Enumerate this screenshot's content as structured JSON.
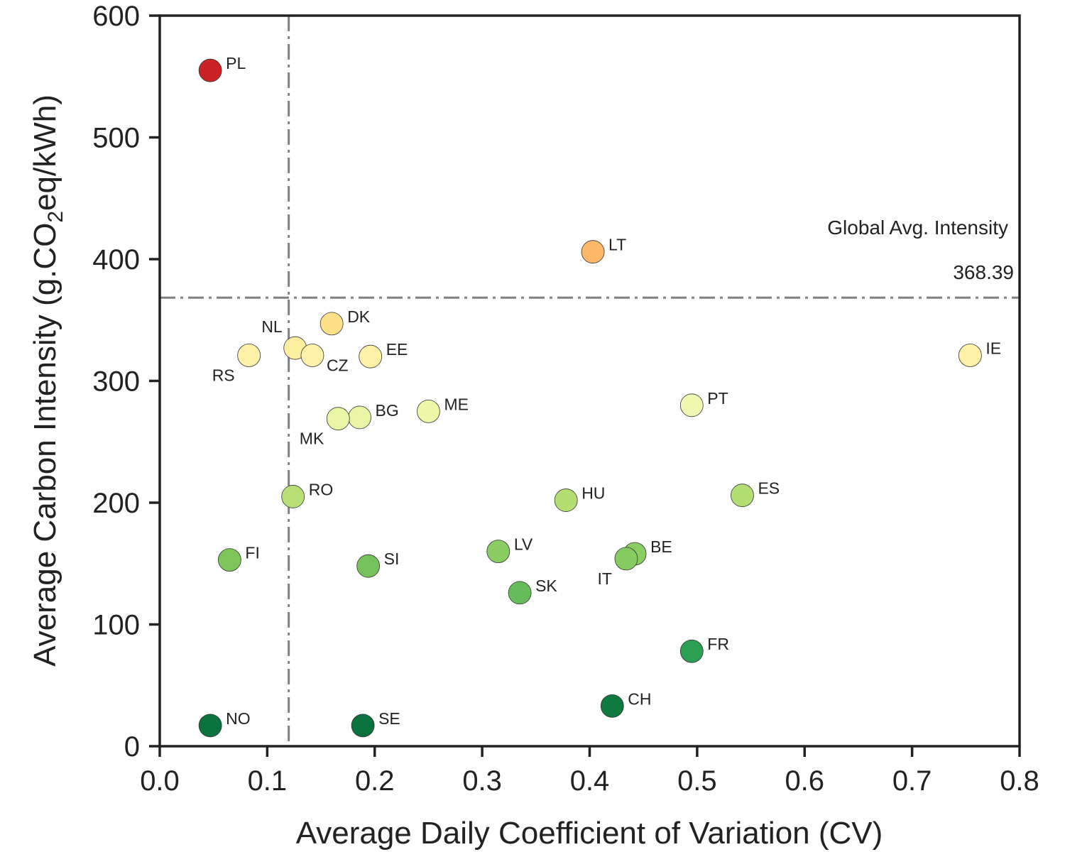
{
  "chart_data": {
    "type": "scatter",
    "title": "",
    "xlabel": "Average Daily Coefficient of Variation (CV)",
    "ylabel_parts": [
      "Average Carbon Intensity (g.CO",
      "2",
      "eq/kWh)"
    ],
    "xlim": [
      0.0,
      0.8
    ],
    "ylim": [
      0,
      600
    ],
    "xticks": [
      "0.0",
      "0.1",
      "0.2",
      "0.3",
      "0.4",
      "0.5",
      "0.6",
      "0.7",
      "0.8"
    ],
    "yticks": [
      "0",
      "100",
      "200",
      "300",
      "400",
      "500",
      "600"
    ],
    "grid": false,
    "reference_lines": {
      "horizontal": {
        "y": 368.39,
        "label": "Global Avg. Intensity",
        "value_label": "368.39",
        "color": "#808080",
        "style": "dash-dot"
      },
      "vertical": {
        "x": 0.12,
        "color": "#808080",
        "style": "dash-dot"
      }
    },
    "points": [
      {
        "label": "PL",
        "x": 0.047,
        "y": 555,
        "color": "#cc2226",
        "label_pos": "right"
      },
      {
        "label": "LT",
        "x": 0.403,
        "y": 406,
        "color": "#fdb768",
        "label_pos": "right"
      },
      {
        "label": "DK",
        "x": 0.16,
        "y": 347,
        "color": "#fee08b",
        "label_pos": "right"
      },
      {
        "label": "NL",
        "x": 0.126,
        "y": 327,
        "color": "#feeea0",
        "label_pos": "upper-left"
      },
      {
        "label": "CZ",
        "x": 0.142,
        "y": 321,
        "color": "#fff1a8",
        "label_pos": "lower-right"
      },
      {
        "label": "RS",
        "x": 0.083,
        "y": 321,
        "color": "#fff1a8",
        "label_pos": "lower-left"
      },
      {
        "label": "EE",
        "x": 0.196,
        "y": 320,
        "color": "#fff1a8",
        "label_pos": "right"
      },
      {
        "label": "IE",
        "x": 0.754,
        "y": 321,
        "color": "#fff1a8",
        "label_pos": "right"
      },
      {
        "label": "PT",
        "x": 0.495,
        "y": 280,
        "color": "#f0f7b0",
        "label_pos": "right"
      },
      {
        "label": "ME",
        "x": 0.25,
        "y": 275,
        "color": "#eef6a8",
        "label_pos": "right"
      },
      {
        "label": "BG",
        "x": 0.186,
        "y": 270,
        "color": "#e9f5a5",
        "label_pos": "right"
      },
      {
        "label": "MK",
        "x": 0.166,
        "y": 269,
        "color": "#e9f5a5",
        "label_pos": "lower-left"
      },
      {
        "label": "RO",
        "x": 0.124,
        "y": 205,
        "color": "#b6e076",
        "label_pos": "right"
      },
      {
        "label": "ES",
        "x": 0.542,
        "y": 206,
        "color": "#b3de73",
        "label_pos": "right"
      },
      {
        "label": "HU",
        "x": 0.378,
        "y": 202,
        "color": "#b3de73",
        "label_pos": "right"
      },
      {
        "label": "LV",
        "x": 0.315,
        "y": 160,
        "color": "#89cc62",
        "label_pos": "right"
      },
      {
        "label": "BE",
        "x": 0.442,
        "y": 158,
        "color": "#8acd63",
        "label_pos": "right"
      },
      {
        "label": "IT",
        "x": 0.434,
        "y": 154,
        "color": "#86cb60",
        "label_pos": "lower-left"
      },
      {
        "label": "FI",
        "x": 0.065,
        "y": 153,
        "color": "#7ec65c",
        "label_pos": "right"
      },
      {
        "label": "SI",
        "x": 0.194,
        "y": 148,
        "color": "#76c25a",
        "label_pos": "right"
      },
      {
        "label": "SK",
        "x": 0.335,
        "y": 126,
        "color": "#66bb5a",
        "label_pos": "right"
      },
      {
        "label": "FR",
        "x": 0.495,
        "y": 78,
        "color": "#2ca052",
        "label_pos": "right"
      },
      {
        "label": "CH",
        "x": 0.421,
        "y": 33,
        "color": "#0e7a3e",
        "label_pos": "right"
      },
      {
        "label": "SE",
        "x": 0.189,
        "y": 17,
        "color": "#0a723c",
        "label_pos": "right"
      },
      {
        "label": "NO",
        "x": 0.047,
        "y": 17,
        "color": "#0a723c",
        "label_pos": "right"
      }
    ]
  }
}
